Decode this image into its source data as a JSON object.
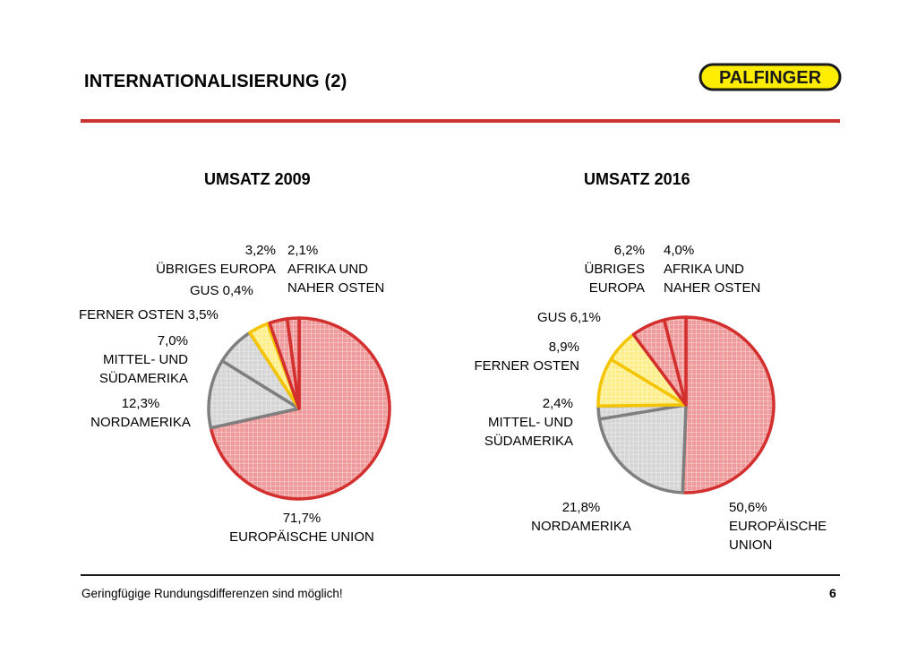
{
  "header": {
    "title": "INTERNATIONALISIERUNG (2)",
    "logo_text": "PALFINGER"
  },
  "footer": {
    "note": "Geringfügige Rundungsdifferenzen sind möglich!",
    "page_number": "6"
  },
  "colors": {
    "accent_red": "#cc3333",
    "eu_fill": "#f1a7a7",
    "red_fill": "#ef9a9a",
    "red_stroke": "#d32f2f",
    "grey_fill": "#d5d5d5",
    "grey_stroke": "#7f7f7f",
    "yellow_fill": "#fdee8a",
    "yellow_stroke": "#f5c400",
    "logo_bg": "#ffed00"
  },
  "chart_data": [
    {
      "type": "pie",
      "title": "UMSATZ 2009",
      "slices": [
        {
          "name": "EUROPÄISCHE UNION",
          "value": 71.7,
          "label": "71,7%",
          "color_group": "red"
        },
        {
          "name": "NORDAMERIKA",
          "value": 12.3,
          "label": "12,3%",
          "color_group": "grey"
        },
        {
          "name": "MITTEL- UND SÜDAMERIKA",
          "value": 7.0,
          "label": "7,0%",
          "color_group": "grey"
        },
        {
          "name": "FERNER OSTEN",
          "value": 3.5,
          "label": "3,5%",
          "color_group": "yellow"
        },
        {
          "name": "GUS",
          "value": 0.4,
          "label": "0,4%",
          "color_group": "yellow"
        },
        {
          "name": "ÜBRIGES EUROPA",
          "value": 3.2,
          "label": "3,2%",
          "color_group": "red"
        },
        {
          "name": "AFRIKA UND NAHER OSTEN",
          "value": 2.1,
          "label": "2,1%",
          "color_group": "red"
        }
      ],
      "labels": {
        "eu": {
          "value": "71,7%",
          "line1": "EUROPÄISCHE UNION"
        },
        "na": {
          "value": "12,3%",
          "line1": "NORDAMERIKA"
        },
        "msa": {
          "value": "7,0%",
          "line1": "MITTEL- UND",
          "line2": "SÜDAMERIKA"
        },
        "fo": {
          "text": "FERNER OSTEN 3,5%"
        },
        "gus": {
          "text": "GUS 0,4%"
        },
        "ue": {
          "value": "3,2%",
          "line1": "ÜBRIGES EUROPA"
        },
        "af": {
          "value": "2,1%",
          "line1": "AFRIKA UND",
          "line2": "NAHER OSTEN"
        }
      }
    },
    {
      "type": "pie",
      "title": "UMSATZ 2016",
      "slices": [
        {
          "name": "EUROPÄISCHE UNION",
          "value": 50.6,
          "label": "50,6%",
          "color_group": "red"
        },
        {
          "name": "NORDAMERIKA",
          "value": 21.8,
          "label": "21,8%",
          "color_group": "grey"
        },
        {
          "name": "MITTEL- UND SÜDAMERIKA",
          "value": 2.4,
          "label": "2,4%",
          "color_group": "grey"
        },
        {
          "name": "FERNER OSTEN",
          "value": 8.9,
          "label": "8,9%",
          "color_group": "yellow"
        },
        {
          "name": "GUS",
          "value": 6.1,
          "label": "6,1%",
          "color_group": "yellow"
        },
        {
          "name": "ÜBRIGES EUROPA",
          "value": 6.2,
          "label": "6,2%",
          "color_group": "red"
        },
        {
          "name": "AFRIKA UND NAHER OSTEN",
          "value": 4.0,
          "label": "4,0%",
          "color_group": "red"
        }
      ],
      "labels": {
        "eu": {
          "value": "50,6%",
          "line1": "EUROPÄISCHE",
          "line2": "UNION"
        },
        "na": {
          "value": "21,8%",
          "line1": "NORDAMERIKA"
        },
        "msa": {
          "value": "2,4%",
          "line1": "MITTEL- UND",
          "line2": "SÜDAMERIKA"
        },
        "fo": {
          "value": "8,9%",
          "line1": "FERNER OSTEN"
        },
        "gus": {
          "text": "GUS 6,1%"
        },
        "ue": {
          "value": "6,2%",
          "line1": "ÜBRIGES",
          "line2": "EUROPA"
        },
        "af": {
          "value": "4,0%",
          "line1": "AFRIKA UND",
          "line2": "NAHER OSTEN"
        }
      }
    }
  ]
}
